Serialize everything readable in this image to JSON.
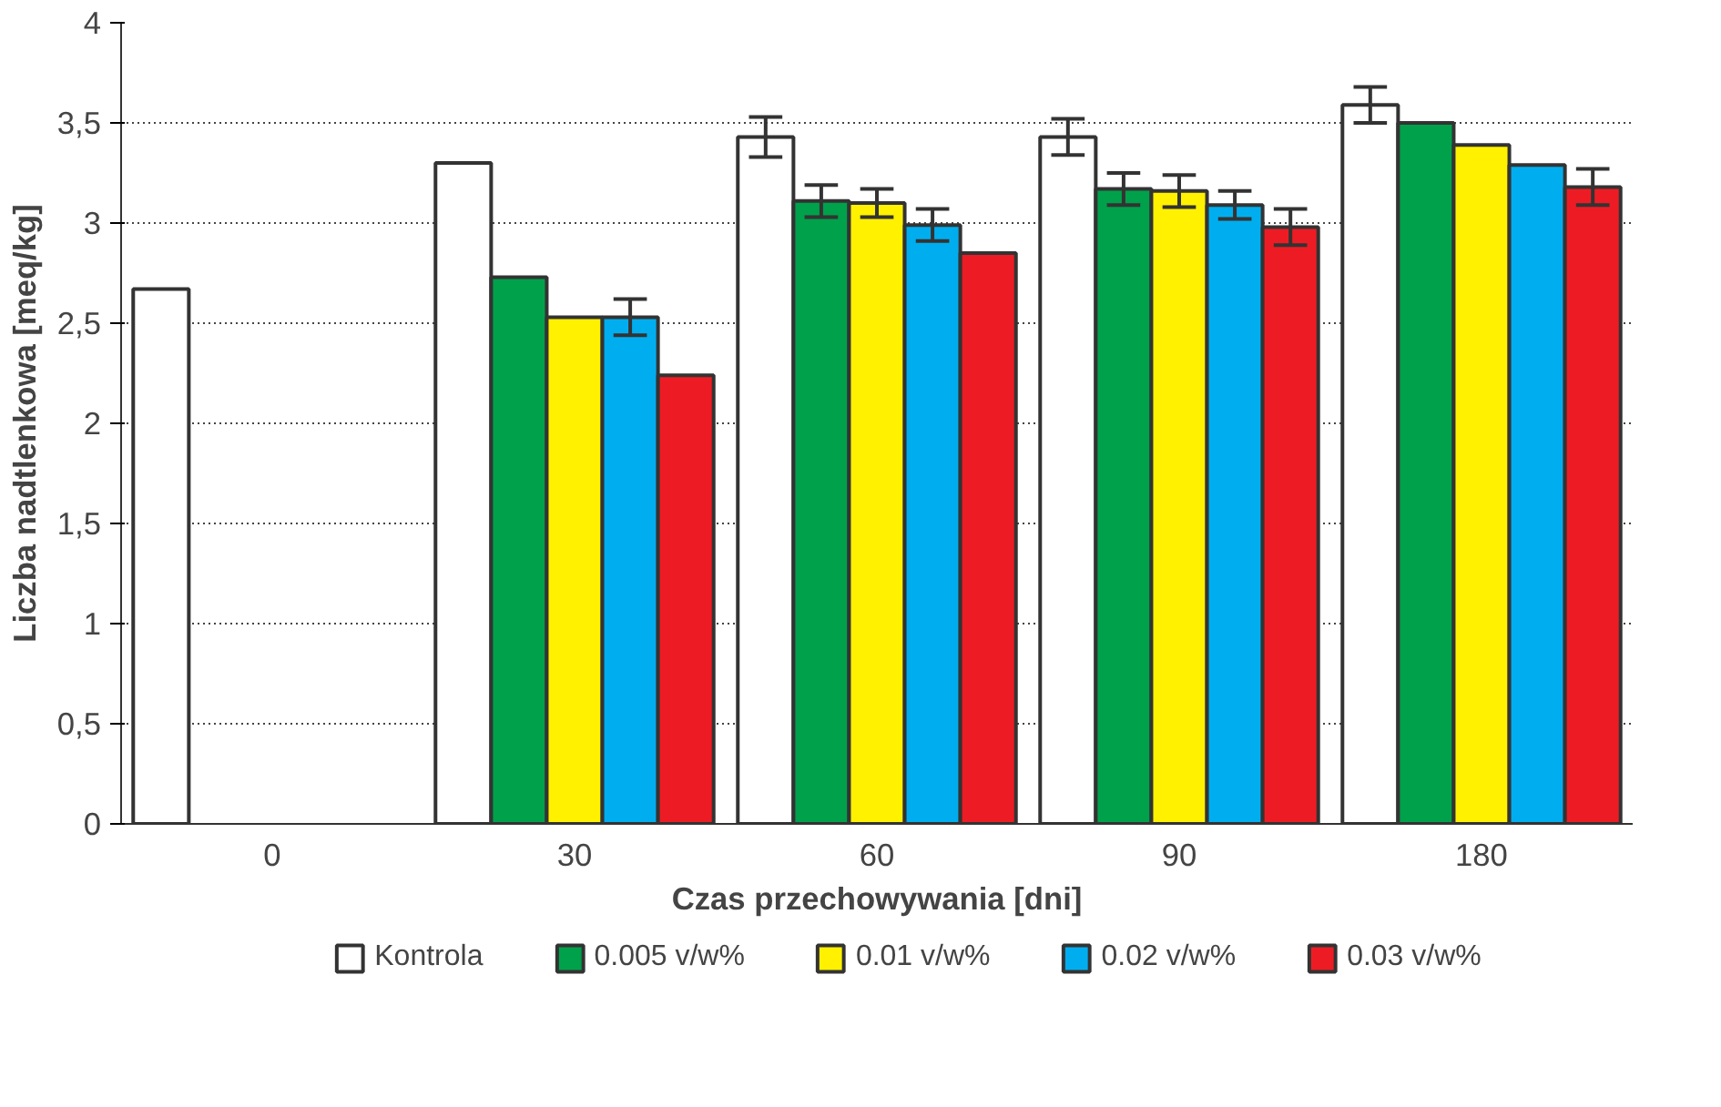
{
  "chart_data": {
    "type": "bar",
    "xlabel": "Czas przechowywania [dni]",
    "ylabel": "Liczba nadtlenkowa [meq/kg]",
    "categories": [
      "0",
      "30",
      "60",
      "90",
      "180"
    ],
    "series": [
      {
        "name": "Kontrola",
        "color": "#ffffff",
        "values": [
          2.67,
          3.3,
          3.43,
          3.43,
          3.59
        ],
        "errors": [
          null,
          null,
          0.1,
          0.09,
          0.09
        ]
      },
      {
        "name": "0.005 v/w%",
        "color": "#00a14b",
        "values": [
          null,
          2.73,
          3.11,
          3.17,
          3.5
        ],
        "errors": [
          null,
          null,
          0.08,
          0.08,
          null
        ]
      },
      {
        "name": "0.01 v/w%",
        "color": "#fff100",
        "values": [
          null,
          2.53,
          3.1,
          3.16,
          3.39
        ],
        "errors": [
          null,
          null,
          0.07,
          0.08,
          null
        ]
      },
      {
        "name": "0.02 v/w%",
        "color": "#00aeef",
        "values": [
          null,
          2.53,
          2.99,
          3.09,
          3.29
        ],
        "errors": [
          null,
          0.09,
          0.08,
          0.07,
          null
        ]
      },
      {
        "name": "0.03 v/w%",
        "color": "#ed1c24",
        "values": [
          null,
          2.24,
          2.85,
          2.98,
          3.18
        ],
        "errors": [
          null,
          null,
          null,
          0.09,
          0.09
        ]
      }
    ],
    "ylim": [
      0,
      4
    ],
    "yticks": [
      0,
      {
        "value": 0.5,
        "label": "0,5"
      },
      1,
      {
        "value": 1.5,
        "label": "1,5"
      },
      2,
      {
        "value": 2.5,
        "label": "2,5"
      },
      3,
      {
        "value": 3.5,
        "label": "3,5"
      },
      4
    ],
    "grid": "y",
    "legend": "bottom"
  }
}
